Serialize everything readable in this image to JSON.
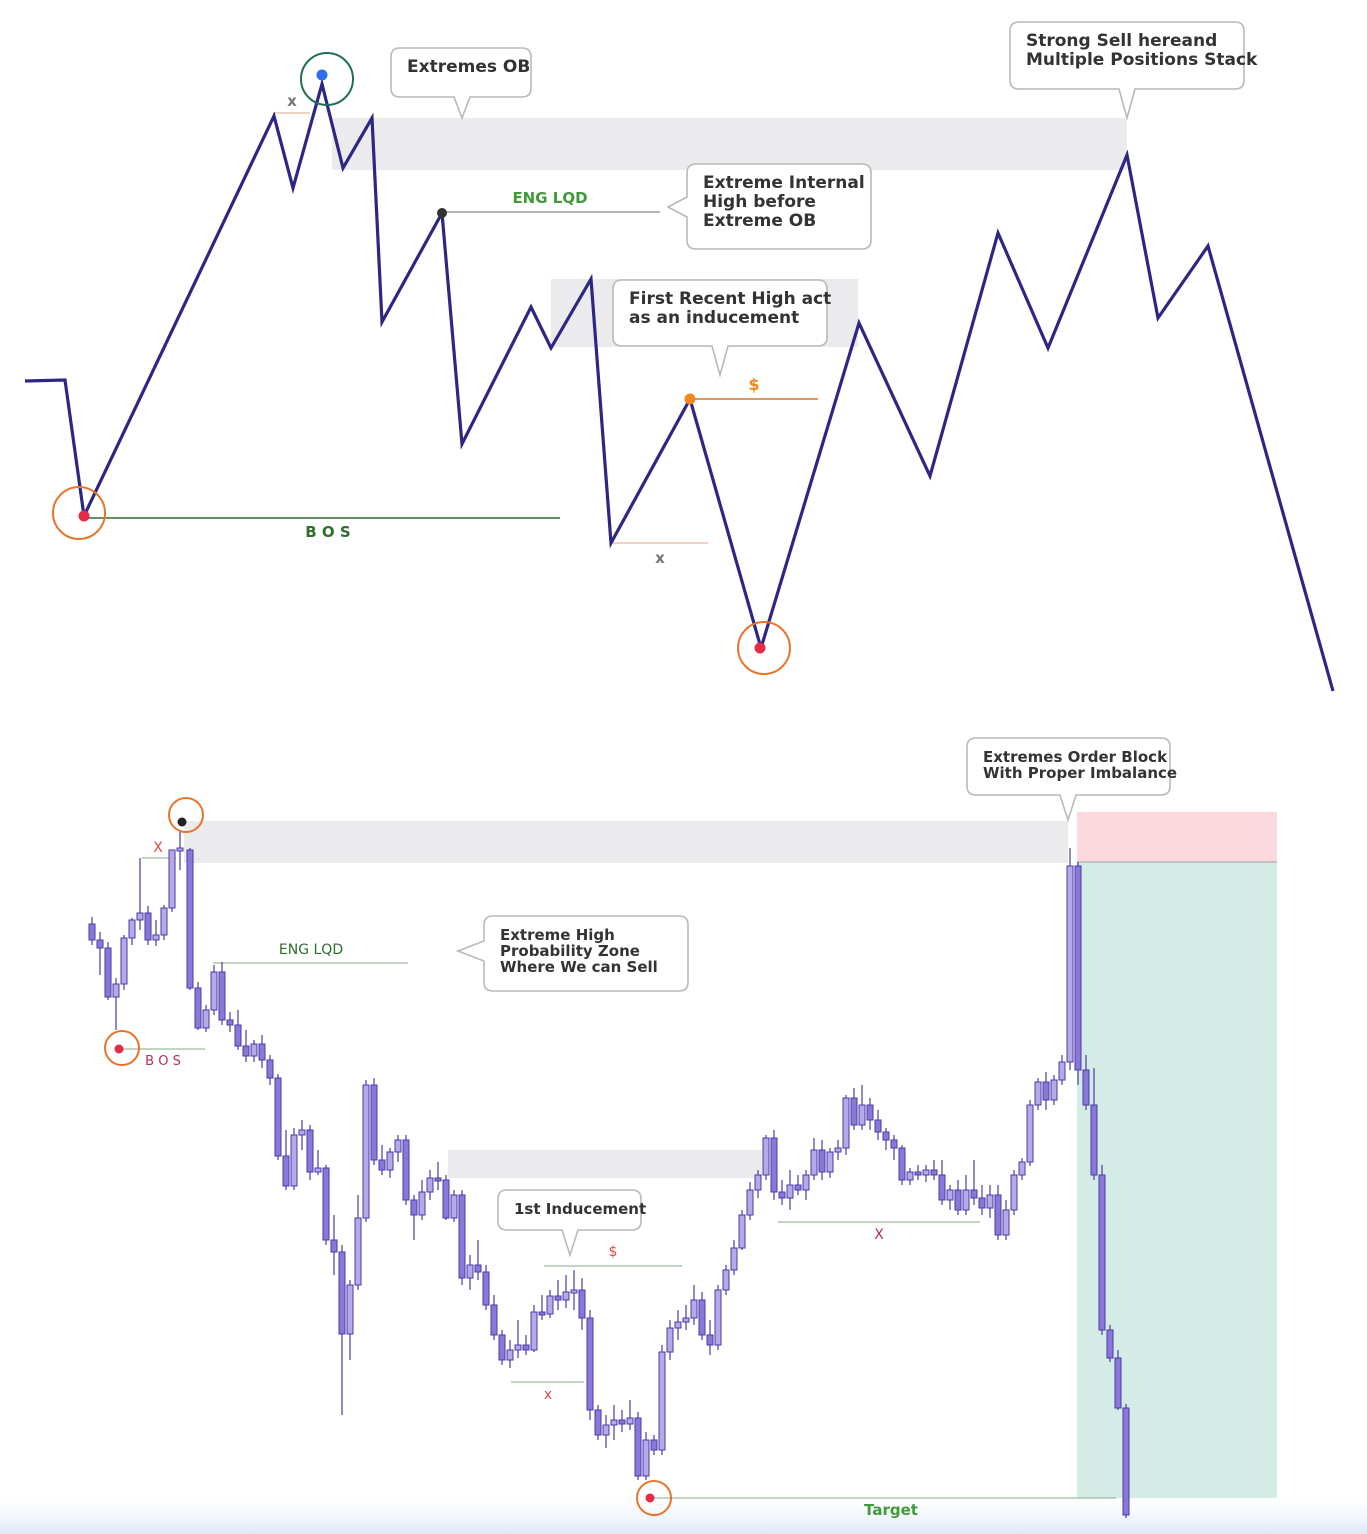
{
  "top_panel": {
    "callouts": {
      "extremes_ob": [
        "Extremes OB"
      ],
      "strong_sell": [
        "Strong Sell hereand",
        "Multiple Positions Stack"
      ],
      "internal_high": [
        "Extreme Internal",
        "High before",
        "Extreme OB"
      ],
      "first_recent_high": [
        "First Recent High act",
        "as an inducement"
      ]
    },
    "labels": {
      "eng_lqd": "ENG LQD",
      "bos": "B O S",
      "dollar": "$",
      "x_top": "x",
      "x_mid": "x"
    }
  },
  "bottom_panel": {
    "callouts": {
      "order_block": [
        "Extremes Order Block",
        "With Proper Imbalance"
      ],
      "sell_zone": [
        "Extreme High",
        "Probability Zone",
        "Where We can Sell"
      ],
      "inducement": [
        "1st Inducement"
      ]
    },
    "labels": {
      "eng_lqd": "ENG LQD",
      "bos": "B O S",
      "x_top": "X",
      "x_low": "x",
      "x_right": "X",
      "dollar": "$",
      "target": "Target"
    }
  },
  "colors": {
    "price_line": "#2e2683",
    "zone_gray": "#ebebee",
    "candle_body": "#b7a8e8",
    "candle_border": "#4b3aa8",
    "circle": "#e8742a",
    "circle_top": "#1f6e55",
    "dot_red": "#e52b45",
    "dot_blue": "#2f6df0",
    "dot_orange": "#f2871e",
    "bos_top": "#2e6e2e",
    "eng_green": "#3f9a3a",
    "bottom_label": "#b0305a",
    "stop_zone": "#fbd9de",
    "target_zone": "#d3ece6",
    "target_text": "#3f9a3a"
  }
}
